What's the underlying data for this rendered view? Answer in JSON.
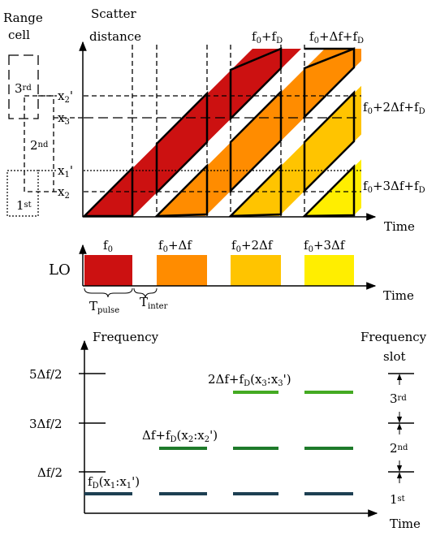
{
  "range_cell": {
    "line1": "Range",
    "line2": "cell"
  },
  "cells": [
    "3rd",
    "2nd",
    "1st"
  ],
  "top_plot": {
    "ylabel": "Scatter distance",
    "xlabel": "Time",
    "distance_marks": [
      "x2'",
      "x3",
      "x1'",
      "x2"
    ],
    "freq_labels": [
      "f0+fD",
      "f0+Δf+fD",
      "f0+2Δf+fD",
      "f0+3Δf+fD"
    ],
    "colors": [
      "#cc1111",
      "#ff8c00",
      "#ffc400",
      "#ffee00"
    ]
  },
  "lo_plot": {
    "label": "LO",
    "xlabel": "Time",
    "pulse_labels": [
      "f0",
      "f0+Δf",
      "f0+2Δf",
      "f0+3Δf"
    ],
    "t_pulse": "Tpulse",
    "t_inter": "Tinter"
  },
  "bottom_plot": {
    "ylabel": "Frequency",
    "xlabel": "Time",
    "ticks": [
      "5Δf/2",
      "3Δf/2",
      "Δf/2"
    ],
    "level_labels": [
      "2Δf+fD(x3:x3')",
      "Δf+fD(x2:x2')",
      "fD(x1:x1')"
    ],
    "level_colors": [
      "#44aa22",
      "#1e7a2a",
      "#1d3f52"
    ],
    "slot_title": [
      "Frequency",
      "slot"
    ],
    "slots": [
      "3rd",
      "2nd",
      "1st"
    ]
  }
}
